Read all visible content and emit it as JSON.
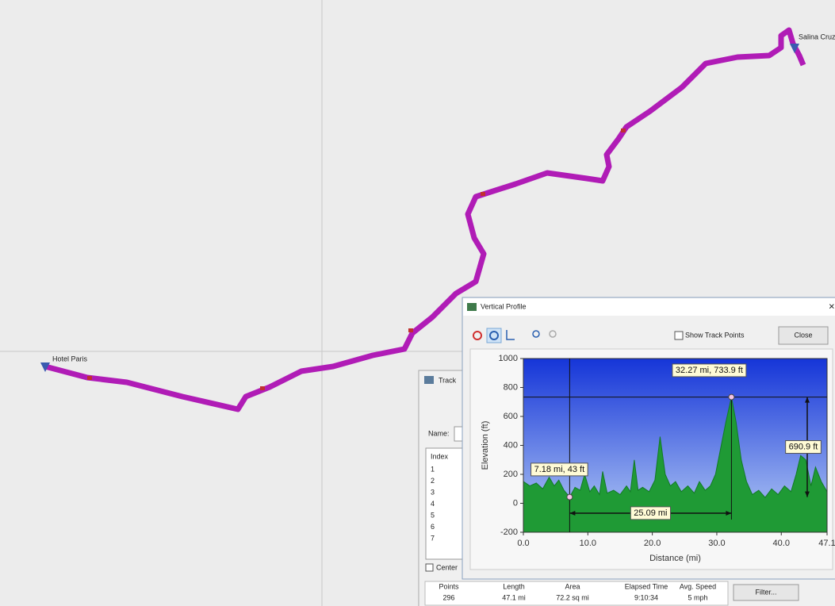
{
  "map": {
    "start_label": "Hotel Paris",
    "end_label": "Salina Cruz"
  },
  "track_window": {
    "title": "Track",
    "name_label": "Name:",
    "index_header": "Index",
    "indices": [
      1,
      2,
      3,
      4,
      5,
      6,
      7
    ],
    "center_label": "Center",
    "stats_headers": [
      "Points",
      "Length",
      "Area",
      "Elapsed Time",
      "Avg. Speed"
    ],
    "stats_values": [
      "296",
      "47.1 mi",
      "72.2 sq mi",
      "9:10:34",
      "5 mph"
    ],
    "filter_button": "Filter..."
  },
  "profile_window": {
    "title": "Vertical Profile",
    "close_x": "×",
    "show_track_points": "Show Track Points",
    "close_button": "Close"
  },
  "chart_data": {
    "type": "area",
    "xlabel": "Distance   (mi)",
    "ylabel": "Elevation (ft)",
    "color": "#1f9a35",
    "x": [
      0,
      1,
      2,
      3,
      4,
      4.8,
      5.5,
      6.3,
      7.18,
      8,
      8.8,
      9.5,
      10.3,
      11,
      11.8,
      12.3,
      13,
      14,
      15,
      16,
      16.6,
      17.2,
      17.8,
      18.5,
      19.5,
      20.4,
      21.2,
      22,
      22.8,
      23.6,
      24.5,
      25.5,
      26.5,
      27.3,
      28.2,
      29,
      29.8,
      30.6,
      31.4,
      32.27,
      33,
      33.8,
      34.6,
      35.5,
      36.5,
      37.5,
      38.5,
      39.5,
      40.5,
      41.5,
      42.3,
      43,
      43.8,
      44.6,
      45.3,
      46.2,
      47.1
    ],
    "values": [
      150,
      120,
      140,
      100,
      180,
      120,
      160,
      90,
      43,
      110,
      90,
      200,
      80,
      120,
      60,
      220,
      70,
      90,
      60,
      120,
      80,
      300,
      90,
      110,
      80,
      160,
      460,
      200,
      120,
      150,
      80,
      120,
      70,
      150,
      90,
      120,
      200,
      380,
      560,
      733.9,
      560,
      300,
      150,
      60,
      90,
      40,
      100,
      60,
      120,
      80,
      200,
      330,
      300,
      120,
      250,
      150,
      80
    ],
    "xlim": [
      0,
      47.1
    ],
    "ylim": [
      -200,
      1000
    ],
    "xticks": [
      {
        "value": 0,
        "label": "0.0"
      },
      {
        "value": 10,
        "label": "10.0"
      },
      {
        "value": 20,
        "label": "20.0"
      },
      {
        "value": 30,
        "label": "30.0"
      },
      {
        "value": 40,
        "label": "40.0"
      },
      47.1
    ],
    "yticks": [
      -200,
      0,
      200,
      400,
      600,
      800,
      1000
    ],
    "grid": false,
    "cursor_points": [
      {
        "x": 7.18,
        "y": 43,
        "label": "7.18 mi, 43 ft"
      },
      {
        "x": 32.27,
        "y": 733.9,
        "label": "32.27 mi, 733.9 ft"
      }
    ],
    "distance_label": {
      "value": 25.09,
      "label": "25.09 mi"
    },
    "elevation_difference": {
      "value": 690.9,
      "label": "690.9 ft"
    }
  }
}
